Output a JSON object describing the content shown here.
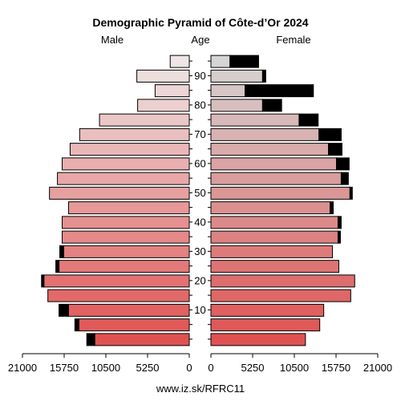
{
  "chart_data": {
    "type": "bar",
    "title": "Demographic Pyramid of Côte-d’Or 2024",
    "left_label": "Male",
    "center_label": "Age",
    "right_label": "Female",
    "source": "www.iz.sk/RFRC11",
    "age_groups": [
      "0-4",
      "5-9",
      "10-14",
      "15-19",
      "20-24",
      "25-29",
      "30-34",
      "35-39",
      "40-44",
      "45-49",
      "50-54",
      "55-59",
      "60-64",
      "65-69",
      "70-74",
      "75-79",
      "80-84",
      "85-89",
      "90-94",
      "95+"
    ],
    "age_ticks": [
      10,
      20,
      30,
      40,
      50,
      60,
      70,
      80,
      90
    ],
    "series": [
      {
        "name": "Male",
        "values": [
          11900,
          13900,
          15200,
          17800,
          18300,
          16400,
          15800,
          16000,
          16000,
          15200,
          17600,
          16600,
          16000,
          15000,
          13800,
          11300,
          6500,
          4300,
          6600,
          2400
        ],
        "excess": [
          1000,
          500,
          1200,
          0,
          300,
          400,
          500,
          0,
          0,
          0,
          0,
          0,
          0,
          0,
          0,
          0,
          0,
          0,
          0,
          0
        ]
      },
      {
        "name": "Female",
        "values": [
          11900,
          13700,
          14200,
          17600,
          18100,
          16100,
          15300,
          16000,
          16000,
          15000,
          17500,
          16400,
          15800,
          14800,
          13600,
          11100,
          6500,
          4300,
          6500,
          2400
        ],
        "excess": [
          0,
          0,
          0,
          0,
          0,
          0,
          0,
          300,
          400,
          400,
          300,
          900,
          1600,
          1700,
          2800,
          2400,
          2400,
          8600,
          400,
          3600
        ]
      }
    ],
    "xlim": [
      0,
      21000
    ],
    "xticks": [
      0,
      5250,
      10500,
      15750,
      21000
    ],
    "xtick_labels": [
      "0",
      "5250",
      "10500",
      "15750",
      "21000"
    ],
    "grid": false
  }
}
